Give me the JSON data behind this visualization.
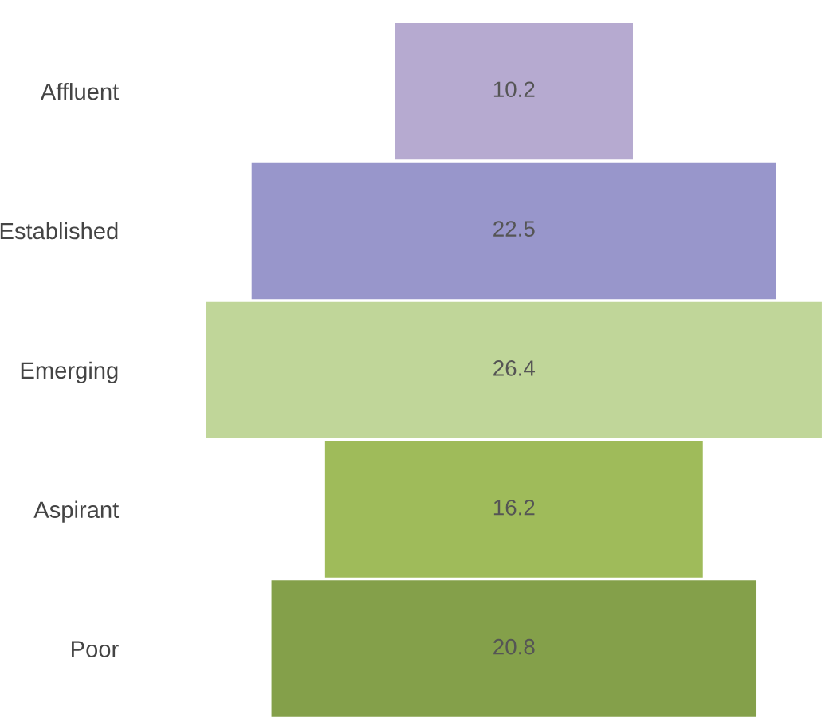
{
  "chart_data": {
    "type": "other",
    "categories": [
      "Affluent",
      "Established",
      "Emerging",
      "Aspirant",
      "Poor"
    ],
    "values": [
      10.2,
      22.5,
      26.4,
      16.2,
      20.8
    ],
    "colors": [
      "#b6aad0",
      "#9896cb",
      "#c0d699",
      "#9fbb5a",
      "#84a04a"
    ],
    "data_labels": true
  }
}
